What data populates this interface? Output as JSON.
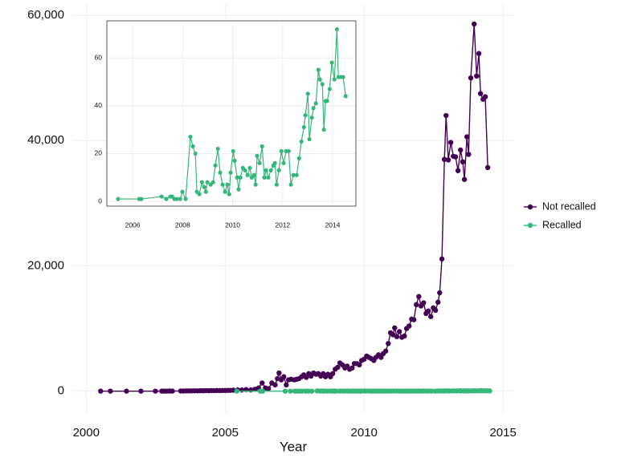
{
  "chart_data": [
    {
      "type": "line",
      "xlabel": "Year",
      "xlim": [
        1999.5,
        2015.4
      ],
      "ylim": [
        -3500,
        61800
      ],
      "xticks": [
        2000,
        2005,
        2010,
        2015
      ],
      "yticks": [
        0,
        {
          "value": 20000,
          "label": "20,000"
        },
        {
          "value": 40000,
          "label": "40,000"
        },
        {
          "value": 60000,
          "label": "60,000"
        }
      ],
      "grid": true,
      "legend": "right",
      "series": [
        {
          "name": "Not recalled",
          "color": "#440154",
          "x": [
            2000.52,
            2000.87,
            2001.45,
            2001.97,
            2002.49,
            2002.72,
            2002.8,
            2002.9,
            2003.0,
            2003.1,
            2003.4,
            2003.5,
            2003.6,
            2003.7,
            2003.8,
            2003.9,
            2004.0,
            2004.1,
            2004.2,
            2004.3,
            2004.4,
            2004.5,
            2004.6,
            2004.7,
            2004.8,
            2004.9,
            2005.0,
            2005.1,
            2005.2,
            2005.3,
            2005.45,
            2005.6,
            2005.75,
            2005.92,
            2006.07,
            2006.2,
            2006.33,
            2006.45,
            2006.56,
            2006.68,
            2006.8,
            2006.88,
            2006.94,
            2007.02,
            2007.11,
            2007.2,
            2007.28,
            2007.37,
            2007.49,
            2007.57,
            2007.66,
            2007.75,
            2007.83,
            2007.92,
            2008.01,
            2008.09,
            2008.18,
            2008.27,
            2008.35,
            2008.44,
            2008.53,
            2008.61,
            2008.7,
            2008.79,
            2008.87,
            2008.96,
            2009.05,
            2009.13,
            2009.22,
            2009.31,
            2009.39,
            2009.48,
            2009.57,
            2009.65,
            2009.74,
            2009.83,
            2009.91,
            2010.0,
            2010.09,
            2010.17,
            2010.26,
            2010.35,
            2010.43,
            2010.52,
            2010.61,
            2010.69,
            2010.78,
            2010.87,
            2010.95,
            2011.04,
            2011.1,
            2011.18,
            2011.27,
            2011.36,
            2011.45,
            2011.53,
            2011.62,
            2011.71,
            2011.79,
            2011.88,
            2011.97,
            2012.05,
            2012.14,
            2012.23,
            2012.31,
            2012.4,
            2012.49,
            2012.57,
            2012.66,
            2012.72,
            2012.8,
            2012.89,
            2012.95,
            2013.03,
            2013.12,
            2013.21,
            2013.29,
            2013.38,
            2013.47,
            2013.55,
            2013.61,
            2013.7,
            2013.76,
            2013.84,
            2013.96,
            2014.05,
            2014.13,
            2014.19,
            2014.28,
            2014.36,
            2014.45
          ],
          "values": [
            0,
            0,
            0,
            0,
            0,
            10,
            0,
            10,
            20,
            10,
            30,
            20,
            40,
            50,
            40,
            60,
            50,
            70,
            60,
            80,
            70,
            90,
            80,
            100,
            90,
            110,
            100,
            120,
            130,
            150,
            200,
            180,
            250,
            200,
            300,
            500,
            1300,
            500,
            400,
            1300,
            1000,
            2000,
            2900,
            1800,
            2300,
            1000,
            1800,
            1900,
            1800,
            1900,
            2000,
            2300,
            2600,
            2200,
            2800,
            2400,
            2900,
            2700,
            2800,
            2400,
            2800,
            2300,
            2700,
            2300,
            2800,
            3500,
            3800,
            4500,
            4200,
            3700,
            4000,
            3500,
            3700,
            4400,
            4400,
            4200,
            4900,
            5100,
            5600,
            5400,
            5200,
            4900,
            5400,
            5800,
            5400,
            6000,
            6400,
            7600,
            9300,
            9000,
            10100,
            8700,
            9500,
            8600,
            8800,
            10000,
            10400,
            11500,
            11400,
            13800,
            15100,
            13600,
            14100,
            12400,
            12800,
            11900,
            13300,
            12900,
            14200,
            15700,
            21100,
            37000,
            44000,
            36900,
            39700,
            37500,
            37400,
            35200,
            38500,
            36600,
            33800,
            40600,
            37800,
            50000,
            58600,
            50300,
            53900,
            47500,
            46600,
            47000,
            35700
          ]
        },
        {
          "name": "Recalled",
          "color": "#35b779",
          "x": [
            2005.42,
            2006.26,
            2006.35,
            2007.16,
            2007.35,
            2007.51,
            2007.58,
            2007.67,
            2007.77,
            2007.9,
            2007.99,
            2008.12,
            2008.31,
            2008.41,
            2008.51,
            2008.57,
            2008.67,
            2008.77,
            2008.86,
            2008.93,
            2008.99,
            2009.12,
            2009.22,
            2009.31,
            2009.41,
            2009.5,
            2009.6,
            2009.7,
            2009.79,
            2009.86,
            2009.92,
            2010.02,
            2010.08,
            2010.18,
            2010.24,
            2010.31,
            2010.41,
            2010.5,
            2010.6,
            2010.69,
            2010.76,
            2010.86,
            2010.92,
            2010.98,
            2011.08,
            2011.18,
            2011.27,
            2011.34,
            2011.43,
            2011.53,
            2011.63,
            2011.69,
            2011.76,
            2011.85,
            2011.95,
            2012.04,
            2012.14,
            2012.24,
            2012.33,
            2012.43,
            2012.56,
            2012.66,
            2012.75,
            2012.85,
            2012.91,
            2013.01,
            2013.07,
            2013.17,
            2013.23,
            2013.33,
            2013.43,
            2013.49,
            2013.59,
            2013.65,
            2013.72,
            2013.78,
            2013.88,
            2013.97,
            2014.07,
            2014.17,
            2014.23,
            2014.33,
            2014.42,
            2014.52
          ],
          "values": [
            1,
            1,
            1,
            2,
            1,
            2,
            2,
            1,
            1,
            1,
            4,
            1,
            27,
            23,
            20,
            4,
            3,
            8,
            6,
            4,
            8,
            7,
            8,
            15,
            22,
            12,
            7,
            4,
            7,
            3,
            12,
            21,
            17,
            10,
            5,
            10,
            14,
            13,
            11,
            14,
            10,
            11,
            7,
            19,
            16,
            23,
            10,
            13,
            10,
            13,
            15,
            16,
            7,
            13,
            21,
            16,
            21,
            21,
            7,
            11,
            11,
            18,
            25,
            31,
            36,
            45,
            26,
            35,
            39,
            41,
            55,
            51,
            49,
            30,
            42,
            42,
            47,
            58,
            51,
            72,
            52,
            52,
            52,
            44
          ]
        }
      ]
    },
    {
      "type": "line",
      "xlim": [
        2004.97,
        2014.93
      ],
      "ylim": [
        -2,
        75.5
      ],
      "xticks": [
        2006,
        2008,
        2010,
        2012,
        2014
      ],
      "yticks": [
        0,
        20,
        40,
        60
      ],
      "grid": true,
      "series": [
        {
          "color": "#35b779",
          "x": [
            2005.42,
            2006.26,
            2006.35,
            2007.16,
            2007.35,
            2007.51,
            2007.58,
            2007.67,
            2007.77,
            2007.9,
            2007.99,
            2008.12,
            2008.31,
            2008.41,
            2008.51,
            2008.57,
            2008.67,
            2008.77,
            2008.86,
            2008.93,
            2008.99,
            2009.12,
            2009.22,
            2009.31,
            2009.41,
            2009.5,
            2009.6,
            2009.7,
            2009.79,
            2009.86,
            2009.92,
            2010.02,
            2010.08,
            2010.18,
            2010.24,
            2010.31,
            2010.41,
            2010.5,
            2010.6,
            2010.69,
            2010.76,
            2010.86,
            2010.92,
            2010.98,
            2011.08,
            2011.18,
            2011.27,
            2011.34,
            2011.43,
            2011.53,
            2011.63,
            2011.69,
            2011.76,
            2011.85,
            2011.95,
            2012.04,
            2012.14,
            2012.24,
            2012.33,
            2012.43,
            2012.56,
            2012.66,
            2012.75,
            2012.85,
            2012.91,
            2013.01,
            2013.07,
            2013.17,
            2013.23,
            2013.33,
            2013.43,
            2013.49,
            2013.59,
            2013.65,
            2013.72,
            2013.78,
            2013.88,
            2013.97,
            2014.07,
            2014.17,
            2014.23,
            2014.33,
            2014.42,
            2014.52
          ],
          "values": [
            1,
            1,
            1,
            2,
            1,
            2,
            2,
            1,
            1,
            1,
            4,
            1,
            27,
            23,
            20,
            4,
            3,
            8,
            6,
            4,
            8,
            7,
            8,
            15,
            22,
            12,
            7,
            4,
            7,
            3,
            12,
            21,
            17,
            10,
            5,
            10,
            14,
            13,
            11,
            14,
            10,
            11,
            7,
            19,
            16,
            23,
            10,
            13,
            10,
            13,
            15,
            16,
            7,
            13,
            21,
            16,
            21,
            21,
            7,
            11,
            11,
            18,
            25,
            31,
            36,
            45,
            26,
            35,
            39,
            41,
            55,
            51,
            49,
            30,
            42,
            42,
            47,
            58,
            51,
            72,
            52,
            52,
            52,
            44
          ]
        }
      ]
    }
  ]
}
